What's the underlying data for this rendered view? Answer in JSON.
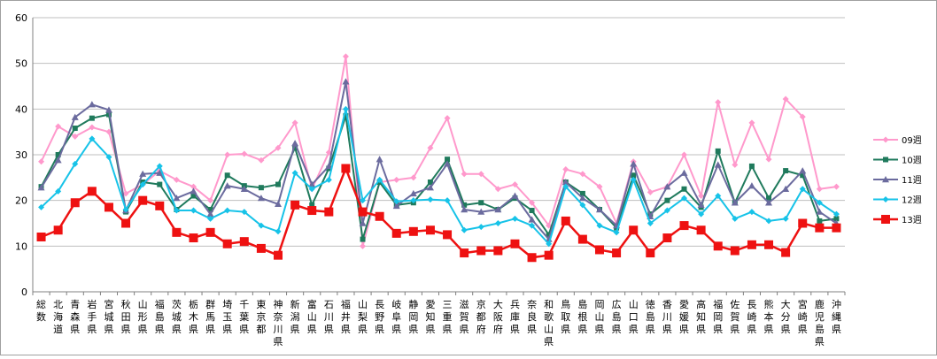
{
  "chart_data": {
    "type": "line",
    "title": "",
    "xlabel": "",
    "ylabel": "",
    "ylim": [
      0,
      60
    ],
    "yticks": [
      0,
      10,
      20,
      30,
      40,
      50,
      60
    ],
    "grid": "horizontal",
    "legend_position": "right",
    "categories": [
      "総数",
      "北海道",
      "青森県",
      "岩手県",
      "宮城県",
      "秋田県",
      "山形県",
      "福島県",
      "茨城県",
      "栃木県",
      "群馬県",
      "埼玉県",
      "千葉県",
      "東京都",
      "神奈川県",
      "新潟県",
      "富山県",
      "石川県",
      "福井県",
      "山梨県",
      "長野県",
      "岐阜県",
      "静岡県",
      "愛知県",
      "三重県",
      "滋賀県",
      "京都府",
      "大阪府",
      "兵庫県",
      "奈良県",
      "和歌山県",
      "鳥取県",
      "島根県",
      "岡山県",
      "広島県",
      "山口県",
      "徳島県",
      "香川県",
      "愛媛県",
      "高知県",
      "福岡県",
      "佐賀県",
      "長崎県",
      "熊本県",
      "大分県",
      "宮崎県",
      "鹿児島県",
      "沖縄県"
    ],
    "series": [
      {
        "name": "09週",
        "color": "#ff99cc",
        "marker": "diamond",
        "values": [
          28.5,
          36.2,
          34.0,
          36.0,
          35.0,
          21.5,
          23.5,
          26.5,
          24.5,
          23.0,
          20.0,
          30.0,
          30.2,
          28.8,
          31.5,
          37.0,
          22.5,
          30.5,
          51.5,
          10.0,
          24.0,
          24.5,
          25.0,
          31.5,
          38.0,
          25.8,
          25.8,
          22.5,
          23.5,
          19.5,
          14.5,
          26.8,
          25.8,
          23.0,
          15.0,
          28.5,
          21.8,
          23.0,
          30.0,
          21.0,
          41.5,
          27.8,
          37.0,
          29.0,
          42.2,
          38.3,
          22.5,
          23.0
        ]
      },
      {
        "name": "10週",
        "color": "#1f7a5c",
        "marker": "square",
        "values": [
          23.0,
          30.0,
          35.8,
          38.0,
          38.8,
          17.5,
          24.0,
          23.5,
          18.0,
          21.0,
          18.0,
          25.5,
          23.2,
          22.8,
          23.5,
          31.5,
          19.0,
          27.0,
          38.5,
          11.5,
          24.0,
          19.0,
          19.5,
          24.0,
          29.0,
          19.0,
          19.5,
          18.0,
          20.5,
          17.8,
          12.5,
          24.0,
          21.5,
          18.0,
          14.0,
          25.5,
          17.0,
          20.0,
          22.5,
          18.5,
          30.8,
          19.5,
          27.5,
          20.5,
          26.5,
          25.5,
          15.5,
          16.0
        ]
      },
      {
        "name": "11週",
        "color": "#6b6b9e",
        "marker": "triangle",
        "values": [
          22.8,
          28.8,
          38.2,
          41.0,
          39.8,
          17.8,
          25.8,
          26.0,
          20.5,
          22.0,
          17.0,
          23.2,
          22.5,
          20.5,
          19.2,
          32.5,
          23.5,
          27.5,
          46.0,
          15.0,
          29.0,
          18.8,
          21.5,
          22.8,
          28.0,
          18.0,
          17.5,
          18.0,
          21.0,
          15.8,
          11.5,
          24.0,
          20.5,
          18.0,
          14.5,
          28.0,
          16.5,
          23.0,
          26.0,
          19.0,
          27.8,
          19.5,
          23.2,
          19.5,
          22.5,
          26.5,
          17.5,
          15.0
        ]
      },
      {
        "name": "12週",
        "color": "#17c3e8",
        "marker": "diamond",
        "values": [
          18.5,
          22.0,
          28.0,
          33.5,
          29.5,
          18.0,
          23.5,
          27.5,
          17.8,
          17.8,
          16.0,
          17.8,
          17.5,
          14.5,
          13.2,
          26.0,
          22.5,
          24.5,
          40.0,
          20.0,
          24.5,
          19.8,
          20.0,
          20.2,
          20.0,
          13.5,
          14.2,
          15.0,
          16.0,
          14.5,
          10.5,
          23.0,
          19.0,
          14.5,
          13.0,
          24.5,
          15.0,
          17.8,
          20.5,
          17.0,
          21.0,
          16.0,
          17.5,
          15.5,
          16.0,
          22.5,
          19.5,
          17.0
        ]
      },
      {
        "name": "13週",
        "color": "#ee1111",
        "marker": "square",
        "values": [
          12.0,
          13.5,
          19.5,
          22.0,
          18.5,
          15.0,
          20.0,
          18.8,
          13.0,
          11.8,
          13.0,
          10.5,
          11.0,
          9.5,
          8.0,
          19.0,
          17.8,
          17.5,
          27.0,
          17.5,
          16.5,
          12.8,
          13.2,
          13.5,
          12.5,
          8.5,
          9.0,
          9.0,
          10.5,
          7.5,
          8.0,
          15.5,
          11.5,
          9.2,
          8.5,
          13.5,
          8.5,
          11.8,
          14.5,
          13.5,
          10.0,
          9.0,
          10.3,
          10.3,
          8.6,
          15.0,
          14.0,
          14.0
        ]
      }
    ]
  }
}
